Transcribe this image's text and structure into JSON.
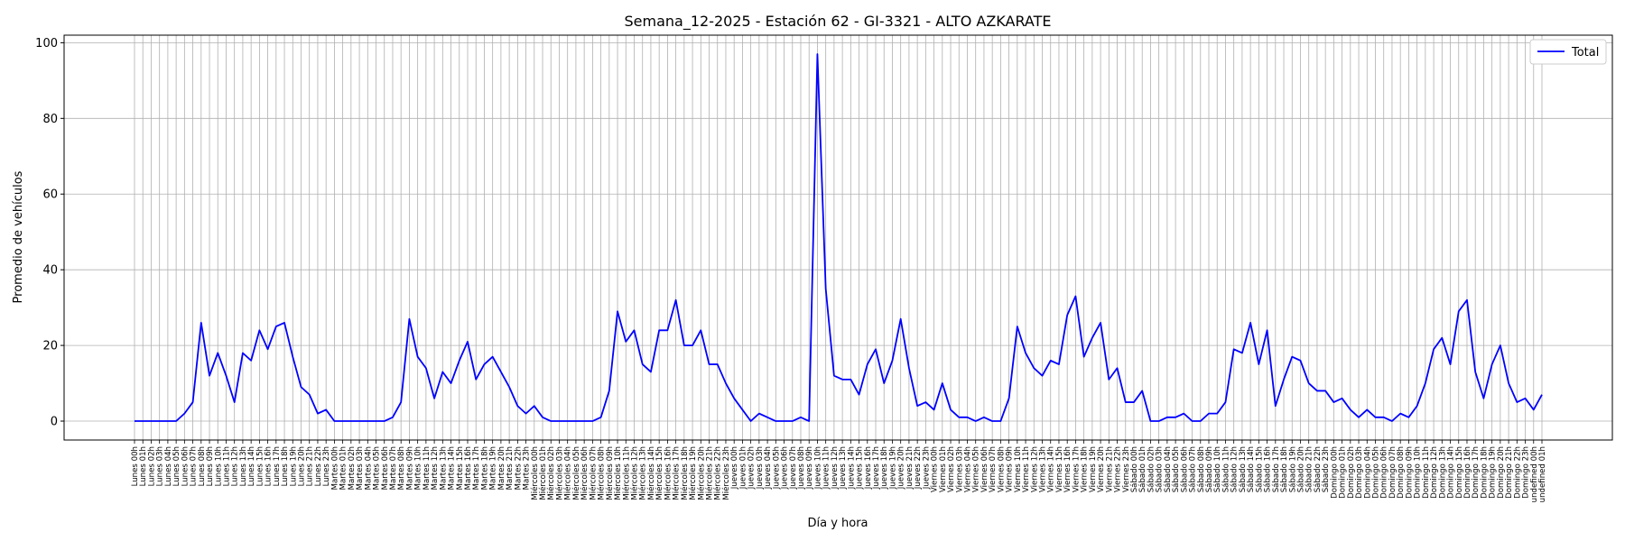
{
  "chart_data": {
    "type": "line",
    "title": "Semana_12-2025 - Estación 62 - GI-3321  - ALTO AZKARATE",
    "xlabel": "Día y hora",
    "ylabel": "Promedio de vehículos",
    "ylim": [
      -5,
      102
    ],
    "yticks": [
      0,
      20,
      40,
      60,
      80,
      100
    ],
    "grid": true,
    "legend_position": "top-right",
    "line_color": "#0000ff",
    "days": [
      "Lunes",
      "Martes",
      "Miércoles",
      "Jueves",
      "Viernes",
      "Sábado",
      "Domingo"
    ],
    "series": [
      {
        "name": "Total",
        "values": [
          0,
          0,
          0,
          0,
          0,
          0,
          2,
          5,
          26,
          12,
          18,
          12,
          5,
          18,
          16,
          24,
          19,
          25,
          26,
          17,
          9,
          7,
          2,
          3,
          0,
          0,
          0,
          0,
          0,
          0,
          0,
          1,
          5,
          27,
          17,
          14,
          6,
          13,
          10,
          16,
          21,
          11,
          15,
          17,
          13,
          9,
          4,
          2,
          4,
          1,
          0,
          0,
          0,
          0,
          0,
          0,
          1,
          8,
          29,
          21,
          24,
          15,
          13,
          24,
          24,
          32,
          20,
          20,
          24,
          15,
          15,
          10,
          6,
          3,
          0,
          2,
          1,
          0,
          0,
          0,
          1,
          0,
          97,
          35,
          12,
          11,
          11,
          7,
          15,
          19,
          10,
          16,
          27,
          14,
          4,
          5,
          3,
          10,
          3,
          1,
          1,
          0,
          1,
          0,
          0,
          6,
          25,
          18,
          14,
          12,
          16,
          15,
          28,
          33,
          17,
          22,
          26,
          11,
          14,
          5,
          5,
          8,
          0,
          0,
          1,
          1,
          2,
          0,
          0,
          2,
          2,
          5,
          19,
          18,
          26,
          15,
          24,
          4,
          11,
          17,
          16,
          10,
          8,
          8,
          5,
          6,
          3,
          1,
          3,
          1,
          1,
          0,
          2,
          1,
          4,
          10,
          19,
          22,
          15,
          29,
          32,
          13,
          6,
          15,
          20,
          10,
          5,
          6,
          3,
          7
        ]
      }
    ]
  }
}
